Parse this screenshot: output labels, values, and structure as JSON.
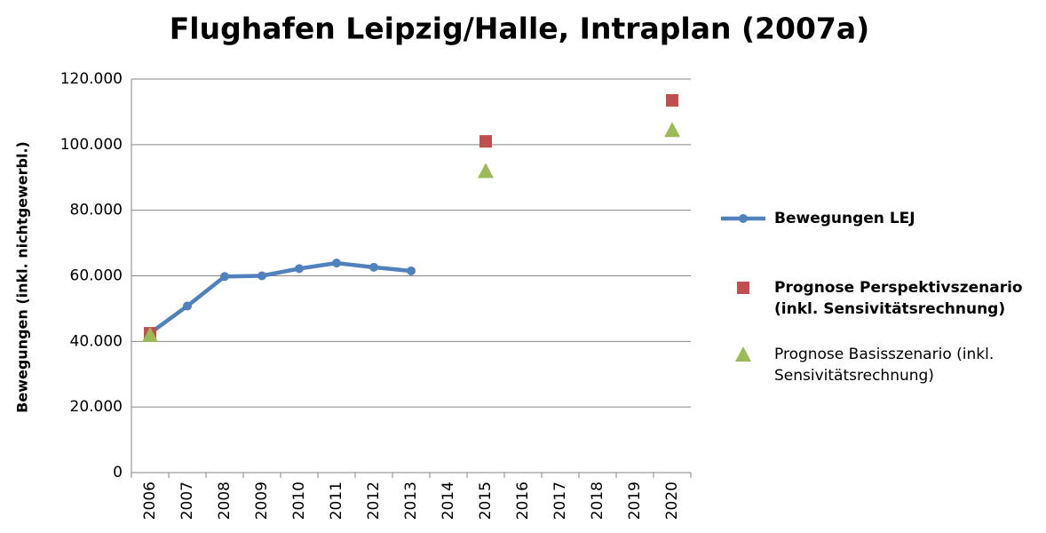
{
  "chart_data": {
    "type": "line",
    "title": "Flughafen Leipzig/Halle, Intraplan (2007a)",
    "y_label": "Bewegungen (inkl. nichtgewerbl.)",
    "categories": [
      "2006",
      "2007",
      "2008",
      "2009",
      "2010",
      "2011",
      "2012",
      "2013",
      "2014",
      "2015",
      "2016",
      "2017",
      "2018",
      "2019",
      "2020"
    ],
    "series": [
      {
        "name": "Bewegungen LEJ",
        "color": "#4f81bd",
        "mode": "line",
        "marker": "circle",
        "values": [
          42500,
          50800,
          59800,
          60000,
          62200,
          63900,
          62600,
          61500,
          null,
          null,
          null,
          null,
          null,
          null,
          null
        ]
      },
      {
        "name": "Prognose Perspektivszenario (inkl. Sensivitätsrechnung)",
        "color": "#c0504d",
        "mode": "markers",
        "marker": "square",
        "values": [
          42500,
          null,
          null,
          null,
          null,
          null,
          null,
          null,
          null,
          101000,
          null,
          null,
          null,
          null,
          113500
        ]
      },
      {
        "name": "Prognose Basisszenario (inkl. Sensivitätsrechnung)",
        "color": "#9bbb59",
        "mode": "markers",
        "marker": "triangle",
        "values": [
          42000,
          null,
          null,
          null,
          null,
          null,
          null,
          null,
          null,
          92000,
          null,
          null,
          null,
          null,
          104500
        ]
      }
    ],
    "ylim": [
      0,
      120000
    ],
    "yticks": [
      0,
      {
        "value": 20000,
        "label": "20.000"
      },
      {
        "value": 40000,
        "label": "40.000"
      },
      {
        "value": 60000,
        "label": "60.000"
      },
      {
        "value": 80000,
        "label": "80.000"
      },
      {
        "value": 100000,
        "label": "100.000"
      },
      {
        "value": 120000,
        "label": "120.000"
      }
    ],
    "grid": true
  }
}
